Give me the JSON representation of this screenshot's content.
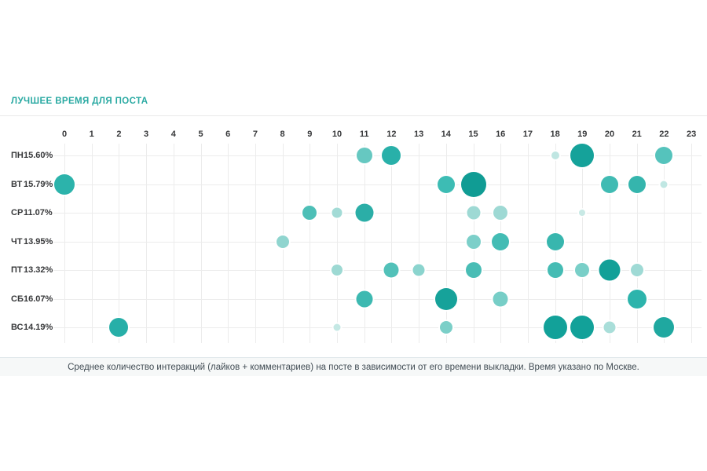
{
  "title": "ЛУЧШЕЕ ВРЕМЯ ДЛЯ ПОСТА",
  "footer": {
    "note": "Среднее количество интеракций (лайков + комментариев) на посте в зависимости от его времени выкладки. Время указано по Москве."
  },
  "colors": {
    "accent": "#29a9a2",
    "grid": "#ececec",
    "label": "#37383a",
    "footer_bg": "#f6f8f8",
    "footer_border": "#dfe7ea",
    "footer_text": "#414c54"
  },
  "chart_data": {
    "type": "scatter",
    "subtype": "bubble-punchcard",
    "title": "ЛУЧШЕЕ ВРЕМЯ ДЛЯ ПОСТА",
    "x_ticks": [
      "0",
      "1",
      "2",
      "3",
      "4",
      "5",
      "6",
      "7",
      "8",
      "9",
      "10",
      "11",
      "12",
      "13",
      "14",
      "15",
      "16",
      "17",
      "18",
      "19",
      "20",
      "21",
      "22",
      "23"
    ],
    "x_range": [
      0,
      23
    ],
    "grid": true,
    "size_meaning": "Среднее количество интеракций (лайков + комментариев) на посте",
    "rows": [
      {
        "day": "ПН",
        "percent": "15.60%"
      },
      {
        "day": "ВТ",
        "percent": "15.79%"
      },
      {
        "day": "СР",
        "percent": "11.07%"
      },
      {
        "day": "ЧТ",
        "percent": "13.95%"
      },
      {
        "day": "ПТ",
        "percent": "13.32%"
      },
      {
        "day": "СБ",
        "percent": "16.07%"
      },
      {
        "day": "ВС",
        "percent": "14.19%"
      }
    ],
    "points": [
      {
        "day": "ПН",
        "hour": 11,
        "r": 10,
        "color": "#66c8c1"
      },
      {
        "day": "ПН",
        "hour": 12,
        "r": 12,
        "color": "#29b0a9"
      },
      {
        "day": "ПН",
        "hour": 18,
        "r": 5,
        "color": "#bfe6e2"
      },
      {
        "day": "ПН",
        "hour": 19,
        "r": 15,
        "color": "#15a29a"
      },
      {
        "day": "ПН",
        "hour": 22,
        "r": 11,
        "color": "#55c3bc"
      },
      {
        "day": "ВТ",
        "hour": 0,
        "r": 13,
        "color": "#2cb3ab"
      },
      {
        "day": "ВТ",
        "hour": 14,
        "r": 11,
        "color": "#3dbcb4"
      },
      {
        "day": "ВТ",
        "hour": 15,
        "r": 16,
        "color": "#109c94"
      },
      {
        "day": "ВТ",
        "hour": 20,
        "r": 11,
        "color": "#40bbb3"
      },
      {
        "day": "ВТ",
        "hour": 21,
        "r": 11,
        "color": "#35b5ad"
      },
      {
        "day": "ВТ",
        "hour": 22,
        "r": 4.5,
        "color": "#c0e7e3"
      },
      {
        "day": "СР",
        "hour": 9,
        "r": 9,
        "color": "#4dbfb7"
      },
      {
        "day": "СР",
        "hour": 10,
        "r": 6.5,
        "color": "#a3dbd6"
      },
      {
        "day": "СР",
        "hour": 11,
        "r": 11.5,
        "color": "#2baea7"
      },
      {
        "day": "СР",
        "hour": 15,
        "r": 8.5,
        "color": "#9ed9d4"
      },
      {
        "day": "СР",
        "hour": 16,
        "r": 9,
        "color": "#9ed9d4"
      },
      {
        "day": "СР",
        "hour": 19,
        "r": 4,
        "color": "#c8e9e5"
      },
      {
        "day": "ЧТ",
        "hour": 8,
        "r": 8,
        "color": "#90d5cf"
      },
      {
        "day": "ЧТ",
        "hour": 15,
        "r": 9,
        "color": "#7ccfc9"
      },
      {
        "day": "ЧТ",
        "hour": 16,
        "r": 11,
        "color": "#43bcb4"
      },
      {
        "day": "ЧТ",
        "hour": 18,
        "r": 11,
        "color": "#38b6ae"
      },
      {
        "day": "ПТ",
        "hour": 10,
        "r": 7,
        "color": "#9dd9d3"
      },
      {
        "day": "ПТ",
        "hour": 12,
        "r": 9.5,
        "color": "#52c1b9"
      },
      {
        "day": "ПТ",
        "hour": 13,
        "r": 7.5,
        "color": "#8bd4ce"
      },
      {
        "day": "ПТ",
        "hour": 15,
        "r": 10,
        "color": "#49bdb5"
      },
      {
        "day": "ПТ",
        "hour": 18,
        "r": 10,
        "color": "#45bcb4"
      },
      {
        "day": "ПТ",
        "hour": 19,
        "r": 9,
        "color": "#79cfc8"
      },
      {
        "day": "ПТ",
        "hour": 20,
        "r": 13.5,
        "color": "#12a098"
      },
      {
        "day": "ПТ",
        "hour": 21,
        "r": 8,
        "color": "#9fdad5"
      },
      {
        "day": "СБ",
        "hour": 11,
        "r": 10.5,
        "color": "#3db9b1"
      },
      {
        "day": "СБ",
        "hour": 14,
        "r": 14,
        "color": "#16a29a"
      },
      {
        "day": "СБ",
        "hour": 16,
        "r": 9.5,
        "color": "#77cec7"
      },
      {
        "day": "СБ",
        "hour": 21,
        "r": 12,
        "color": "#2db4ac"
      },
      {
        "day": "ВС",
        "hour": 2,
        "r": 12,
        "color": "#27afa8"
      },
      {
        "day": "ВС",
        "hour": 10,
        "r": 4.5,
        "color": "#c4e8e4"
      },
      {
        "day": "ВС",
        "hour": 14,
        "r": 8,
        "color": "#7bcfc8"
      },
      {
        "day": "ВС",
        "hour": 18,
        "r": 15,
        "color": "#12a199"
      },
      {
        "day": "ВС",
        "hour": 19,
        "r": 15,
        "color": "#12a199"
      },
      {
        "day": "ВС",
        "hour": 20,
        "r": 7.5,
        "color": "#a9ded9"
      },
      {
        "day": "ВС",
        "hour": 22,
        "r": 13,
        "color": "#1fa8a0"
      }
    ]
  }
}
